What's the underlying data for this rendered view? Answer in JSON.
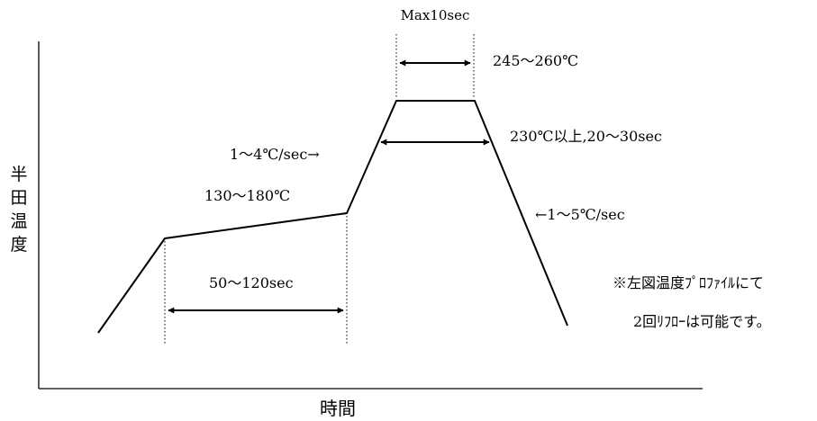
{
  "labels": {
    "max_time": "Max10sec",
    "peak_temp": "245〜260℃",
    "above_230": "230℃以上,20〜30sec",
    "ramp_up": "1〜4℃/sec→",
    "preheat_temp": "130〜180℃",
    "preheat_time": "50〜120sec",
    "ramp_down": "←1〜5℃/sec",
    "y_axis": [
      "半",
      "田",
      "温",
      "度"
    ],
    "x_axis": "時間",
    "note_line1": "※左図温度ﾌﾟﾛﾌｧｲﾙにて",
    "note_line2": "2回ﾘﾌﾛｰは可能です。"
  }
}
